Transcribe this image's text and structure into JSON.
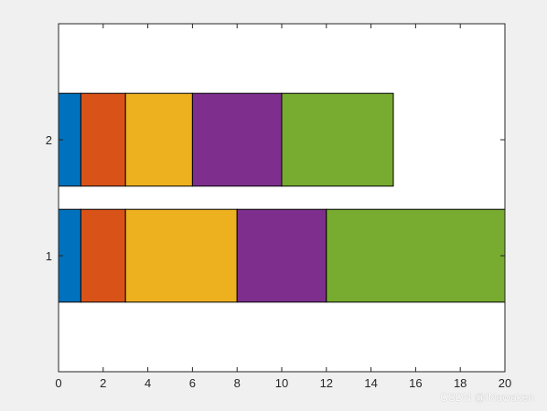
{
  "chart_data": {
    "type": "bar",
    "orientation": "horizontal",
    "stacked": true,
    "categories": [
      "1",
      "2"
    ],
    "series": [
      {
        "values": [
          1,
          1
        ],
        "color": "#0072BD"
      },
      {
        "values": [
          2,
          2
        ],
        "color": "#D95319"
      },
      {
        "values": [
          5,
          3
        ],
        "color": "#EDB120"
      },
      {
        "values": [
          4,
          4
        ],
        "color": "#7E2F8E"
      },
      {
        "values": [
          8,
          5
        ],
        "color": "#77AC30"
      }
    ],
    "xlim": [
      0,
      20
    ],
    "ylim": [
      0,
      3
    ],
    "x_ticks": [
      "0",
      "2",
      "4",
      "6",
      "8",
      "10",
      "12",
      "14",
      "16",
      "18",
      "20"
    ],
    "y_ticks": [
      "1",
      "2"
    ],
    "title": "",
    "xlabel": "",
    "ylabel": "",
    "grid": false,
    "legend": "none"
  },
  "watermark": "CSDN @INawaken"
}
